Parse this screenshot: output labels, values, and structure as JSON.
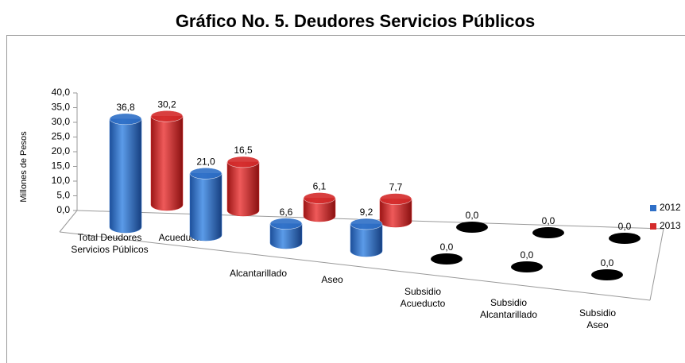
{
  "chart_data": {
    "type": "bar3d",
    "title": "Gráfico No. 5. Deudores Servicios Públicos",
    "y_label": "Millones de Pesos",
    "categories": [
      "Total Deudores\nServicios Públicos",
      "Acueducto",
      "Alcantarillado",
      "Aseo",
      "Subsidio\nAcueducto",
      "Subsidio\nAlcantarillado",
      "Subsidio\nAseo"
    ],
    "series": [
      {
        "name": "2012",
        "color": "#2e6fc7",
        "values": [
          36.8,
          21.0,
          6.6,
          9.2,
          0,
          0,
          0
        ],
        "value_labels": [
          "36,8",
          "21,0",
          "6,6",
          "9,2",
          "0,0",
          "0,0",
          "0,0"
        ]
      },
      {
        "name": "2013",
        "color": "#d42b2b",
        "values": [
          30.2,
          16.5,
          6.1,
          7.7,
          0,
          0,
          0
        ],
        "value_labels": [
          "30,2",
          "16,5",
          "6,1",
          "7,7",
          "0,0",
          "0,0",
          "0,0"
        ]
      }
    ],
    "ylim": [
      0,
      40
    ],
    "yticks": [
      {
        "value": 0,
        "label": "0,0"
      },
      {
        "value": 5,
        "label": "5,0"
      },
      {
        "value": 10,
        "label": "10,0"
      },
      {
        "value": 15,
        "label": "15,0"
      },
      {
        "value": 20,
        "label": "20,0"
      },
      {
        "value": 25,
        "label": "25,0"
      },
      {
        "value": 30,
        "label": "30,0"
      },
      {
        "value": 35,
        "label": "35,0"
      },
      {
        "value": 40,
        "label": "40,0"
      }
    ],
    "legend": "right"
  }
}
